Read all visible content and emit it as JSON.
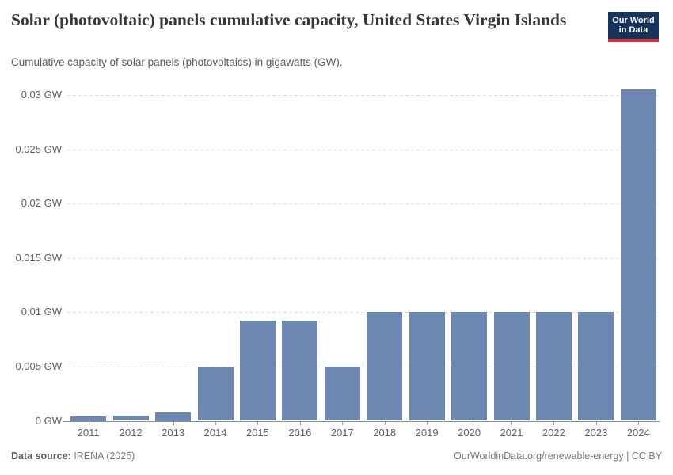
{
  "header": {
    "title": "Solar (photovoltaic) panels cumulative capacity, United States Virgin Islands",
    "subtitle": "Cumulative capacity of solar panels (photovoltaics) in gigawatts (GW).",
    "logo": {
      "line1": "Our World",
      "line2": "in Data"
    }
  },
  "chart_data": {
    "type": "bar",
    "title": "Solar (photovoltaic) panels cumulative capacity, United States Virgin Islands",
    "unit": "GW",
    "categories": [
      "2011",
      "2012",
      "2013",
      "2014",
      "2015",
      "2016",
      "2017",
      "2018",
      "2019",
      "2020",
      "2021",
      "2022",
      "2023",
      "2024"
    ],
    "values": [
      0.0004,
      0.0005,
      0.0008,
      0.0049,
      0.0092,
      0.0092,
      0.005,
      0.01,
      0.01,
      0.01,
      0.01,
      0.01,
      0.01,
      0.0305
    ],
    "xlabel": "",
    "ylabel": "",
    "ylim": [
      0,
      0.03
    ],
    "yticks": [
      0,
      0.005,
      0.01,
      0.015,
      0.02,
      0.025,
      0.03
    ],
    "ytick_labels": [
      "0 GW",
      "0.005 GW",
      "0.01 GW",
      "0.015 GW",
      "0.02 GW",
      "0.025 GW",
      "0.03 GW"
    ],
    "grid": "horizontal-dashed",
    "legend": "none"
  },
  "colors": {
    "bar": "#6c87b2",
    "grid": "#dedede",
    "axis": "#8f8f8f",
    "tick_text": "#606060",
    "logo_bg": "#16355e",
    "logo_accent": "#d8352e"
  },
  "footer": {
    "source_label": "Data source:",
    "source_value": "IRENA (2025)",
    "credit": "OurWorldinData.org/renewable-energy | CC BY"
  }
}
